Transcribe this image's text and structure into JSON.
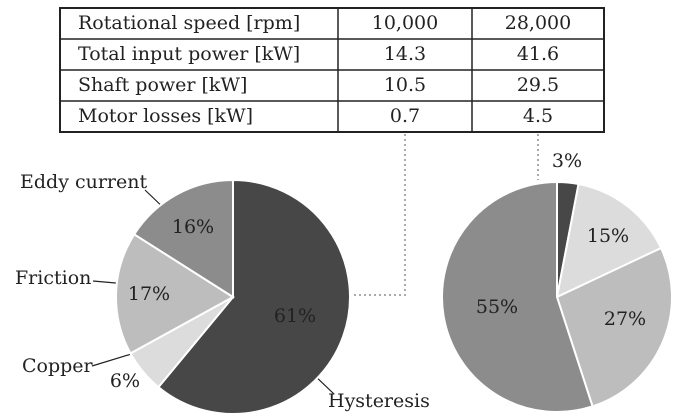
{
  "table": {
    "rows": [
      [
        "Rotational speed [rpm]",
        "10,000",
        "28,000"
      ],
      [
        "Total input power [kW]",
        "14.3",
        "41.6"
      ],
      [
        "Shaft power [kW]",
        "10.5",
        "29.5"
      ],
      [
        "Motor losses [kW]",
        "0.7",
        "4.5"
      ]
    ]
  },
  "chart_data": [
    {
      "type": "pie",
      "categories": [
        "Hysteresis",
        "Copper",
        "Friction",
        "Eddy current"
      ],
      "values": [
        61,
        6,
        17,
        16
      ],
      "value_labels": [
        "61%",
        "6%",
        "17%",
        "16%"
      ],
      "colors": [
        "#474747",
        "#dcdcdc",
        "#bdbdbd",
        "#8c8c8c"
      ]
    },
    {
      "type": "pie",
      "values": [
        3,
        15,
        27,
        55
      ],
      "value_labels": [
        "3%",
        "15%",
        "27%",
        "55%"
      ],
      "colors": [
        "#474747",
        "#dcdcdc",
        "#bdbdbd",
        "#8c8c8c"
      ]
    }
  ]
}
